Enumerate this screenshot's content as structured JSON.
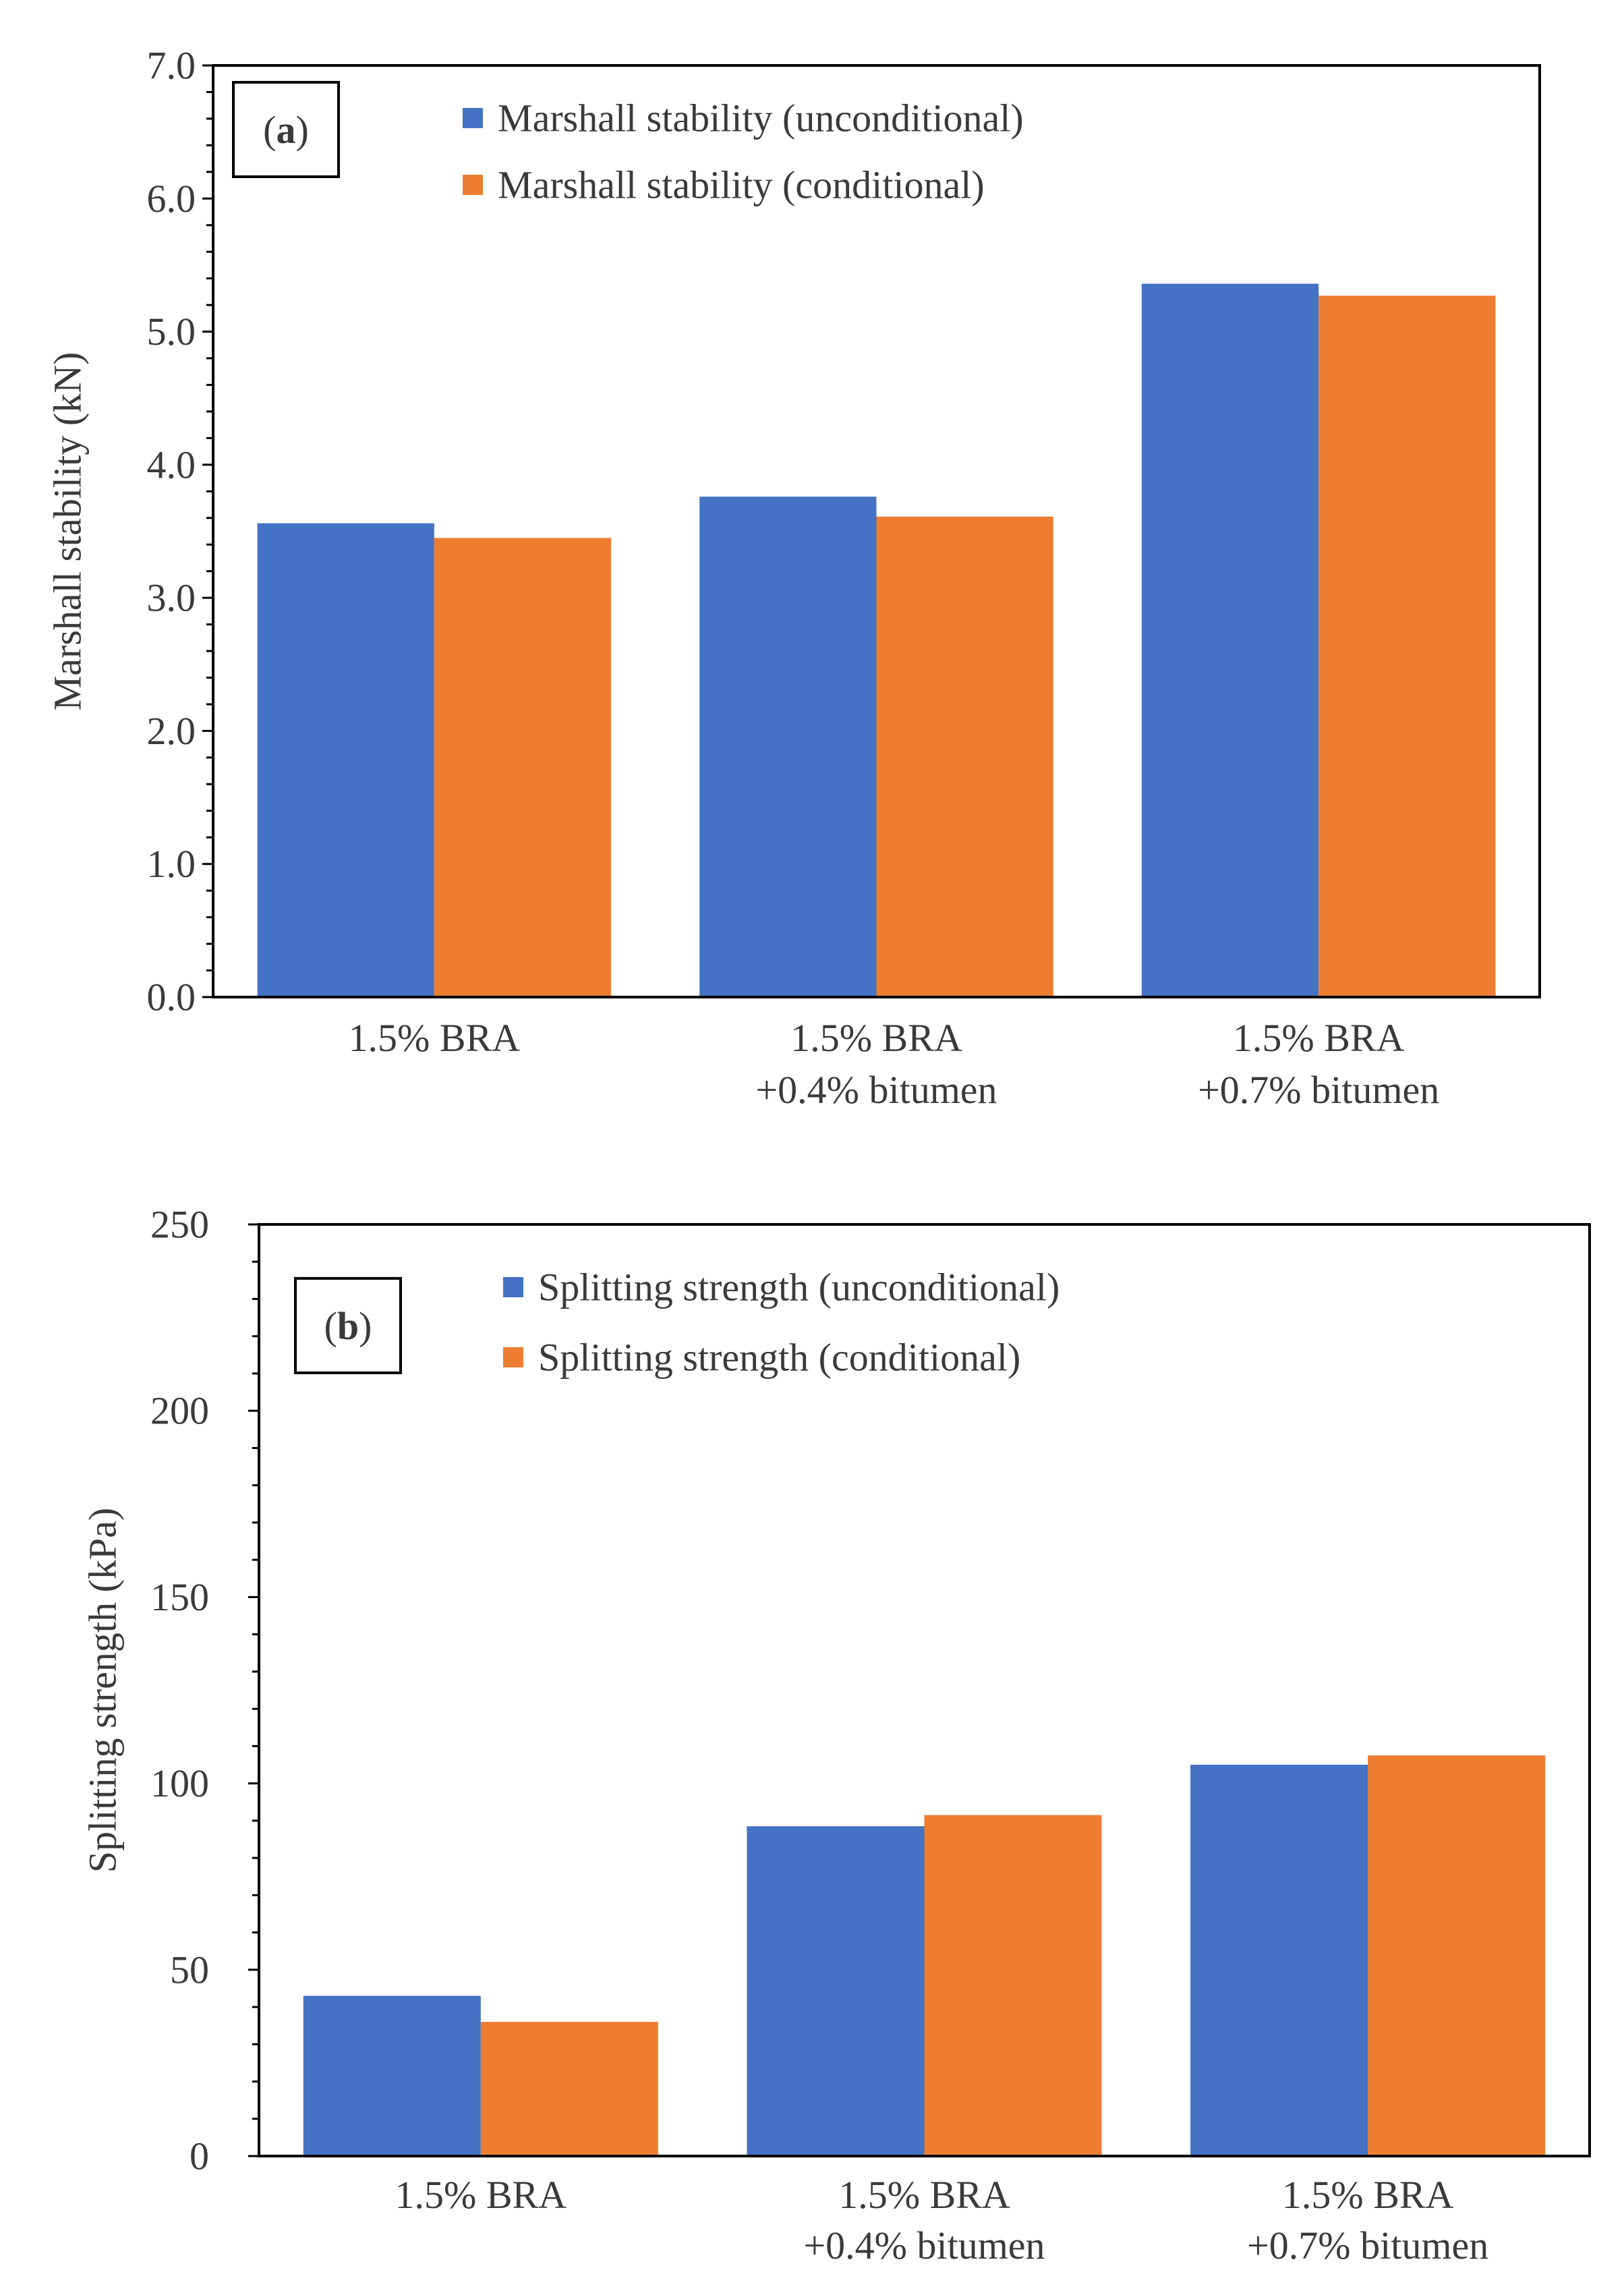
{
  "colors": {
    "unconditional": "#4472C4",
    "conditional": "#ED7D31",
    "axis": "#000000",
    "text": "#3a3a3a"
  },
  "chart_data": [
    {
      "type": "bar",
      "panel_label": "(a)",
      "panel_label_parts": [
        "(",
        "a",
        ")"
      ],
      "title": "",
      "ylabel": "Marshall stability (kN)",
      "xlabel": "",
      "ylim": [
        0,
        7
      ],
      "ytick_step": 1,
      "ytick_decimals": 1,
      "minor_ticks_per_major": 5,
      "categories": [
        [
          "1.5% BRA"
        ],
        [
          "1.5% BRA",
          "+0.4% bitumen"
        ],
        [
          "1.5% BRA",
          "+0.7% bitumen"
        ]
      ],
      "series": [
        {
          "name": "Marshall stability (unconditional)",
          "color": "#4472C4",
          "values": [
            3.56,
            3.76,
            5.36
          ]
        },
        {
          "name": "Marshall stability (conditional)",
          "color": "#ED7D31",
          "values": [
            3.45,
            3.61,
            5.27
          ]
        }
      ],
      "legend_position": "top-center",
      "grid": false
    },
    {
      "type": "bar",
      "panel_label": "(b)",
      "panel_label_parts": [
        "(",
        "b",
        ")"
      ],
      "title": "",
      "ylabel": "Splitting strength (kPa)",
      "xlabel": "",
      "ylim": [
        0,
        250
      ],
      "ytick_step": 50,
      "ytick_decimals": 0,
      "minor_ticks_per_major": 5,
      "categories": [
        [
          "1.5% BRA"
        ],
        [
          "1.5% BRA",
          "+0.4% bitumen"
        ],
        [
          "1.5% BRA",
          "+0.7% bitumen"
        ]
      ],
      "series": [
        {
          "name": "Splitting strength (unconditional)",
          "color": "#4472C4",
          "values": [
            43,
            88.5,
            105
          ]
        },
        {
          "name": "Splitting strength (conditional)",
          "color": "#ED7D31",
          "values": [
            36,
            91.5,
            107.5
          ]
        }
      ],
      "legend_position": "top-center",
      "grid": false
    }
  ]
}
